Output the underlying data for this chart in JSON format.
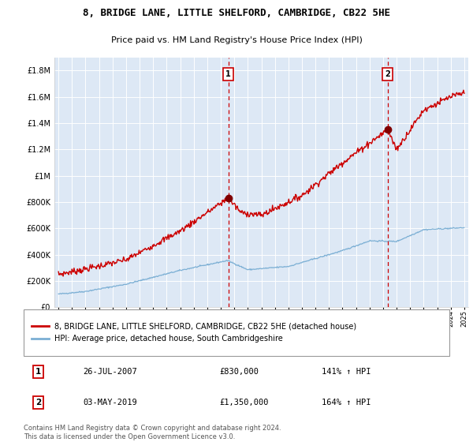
{
  "title1": "8, BRIDGE LANE, LITTLE SHELFORD, CAMBRIDGE, CB22 5HE",
  "title2": "Price paid vs. HM Land Registry's House Price Index (HPI)",
  "ylabel_ticks": [
    "£0",
    "£200K",
    "£400K",
    "£600K",
    "£800K",
    "£1M",
    "£1.2M",
    "£1.4M",
    "£1.6M",
    "£1.8M"
  ],
  "ylabel_values": [
    0,
    200000,
    400000,
    600000,
    800000,
    1000000,
    1200000,
    1400000,
    1600000,
    1800000
  ],
  "ymax": 1900000,
  "x_start_year": 1995,
  "x_end_year": 2025,
  "sale1_date": 2007.56,
  "sale1_price": 830000,
  "sale1_label": "1",
  "sale2_date": 2019.34,
  "sale2_price": 1350000,
  "sale2_label": "2",
  "red_line_color": "#cc0000",
  "blue_line_color": "#7bafd4",
  "dashed_line_color": "#cc0000",
  "background_color": "#ffffff",
  "plot_bg_color": "#dde8f5",
  "grid_color": "#ffffff",
  "legend1": "8, BRIDGE LANE, LITTLE SHELFORD, CAMBRIDGE, CB22 5HE (detached house)",
  "legend2": "HPI: Average price, detached house, South Cambridgeshire",
  "table_row1": [
    "1",
    "26-JUL-2007",
    "£830,000",
    "141% ↑ HPI"
  ],
  "table_row2": [
    "2",
    "03-MAY-2019",
    "£1,350,000",
    "164% ↑ HPI"
  ],
  "footnote": "Contains HM Land Registry data © Crown copyright and database right 2024.\nThis data is licensed under the Open Government Licence v3.0."
}
